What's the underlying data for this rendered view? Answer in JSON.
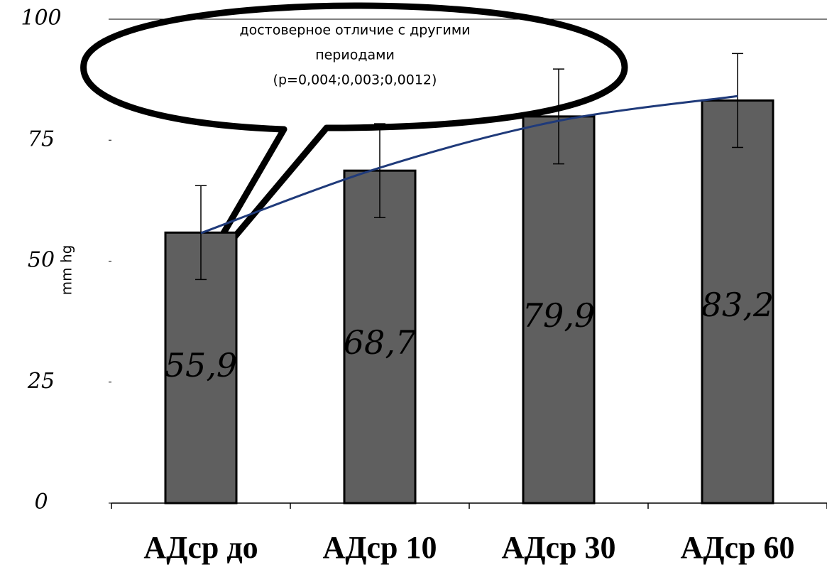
{
  "chart_data": {
    "type": "bar",
    "categories": [
      "АДср до",
      "АДср 10",
      "АДср 30",
      "АДср 60"
    ],
    "values": [
      55.9,
      68.7,
      79.9,
      83.2
    ],
    "value_labels": [
      "55,9",
      "68,7",
      "79,9",
      "83,2"
    ],
    "errors": [
      9.7,
      9.7,
      9.8,
      9.7
    ],
    "color": "#5f5f5f",
    "trend_values": [
      55.8,
      69.3,
      79,
      84.1
    ],
    "trend_color": "#1f3a7a",
    "y_label": "mm hg",
    "ylim": [
      0,
      100
    ],
    "yticks": [
      0,
      25,
      50,
      75,
      100
    ],
    "annotation": [
      "достоверное отличие с другими",
      "периодами",
      "(p=0,004;0,003;0,0012)"
    ]
  }
}
